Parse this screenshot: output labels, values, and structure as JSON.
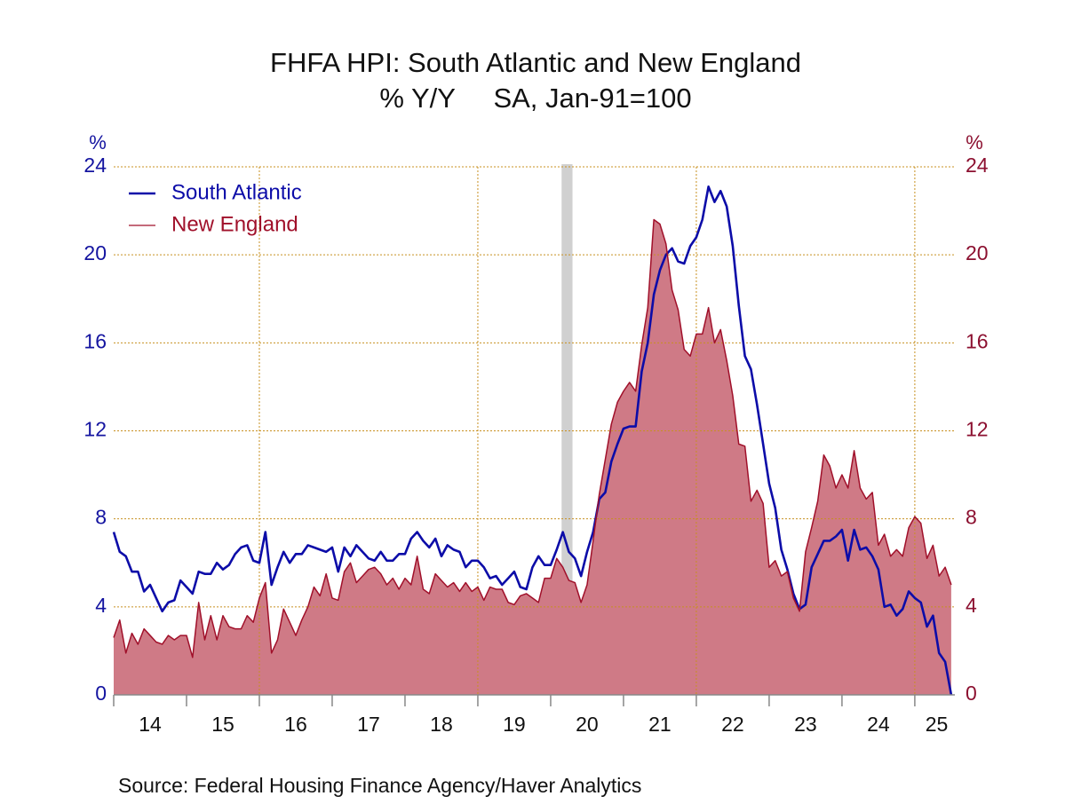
{
  "chart_data": {
    "type": "line",
    "title": "FHFA HPI: South Atlantic and New England",
    "subtitle": "% Y/Y     SA, Jan-91=100",
    "y_unit": "%",
    "y2_unit": "%",
    "source": "Source:  Federal Housing Finance Agency/Haver Analytics",
    "x": [
      2014,
      2014.083,
      2014.167,
      2014.25,
      2014.333,
      2014.417,
      2014.5,
      2014.583,
      2014.667,
      2014.75,
      2014.833,
      2014.917,
      2015,
      2015.083,
      2015.167,
      2015.25,
      2015.333,
      2015.417,
      2015.5,
      2015.583,
      2015.667,
      2015.75,
      2015.833,
      2015.917,
      2016,
      2016.083,
      2016.167,
      2016.25,
      2016.333,
      2016.417,
      2016.5,
      2016.583,
      2016.667,
      2016.75,
      2016.833,
      2016.917,
      2017,
      2017.083,
      2017.167,
      2017.25,
      2017.333,
      2017.417,
      2017.5,
      2017.583,
      2017.667,
      2017.75,
      2017.833,
      2017.917,
      2018,
      2018.083,
      2018.167,
      2018.25,
      2018.333,
      2018.417,
      2018.5,
      2018.583,
      2018.667,
      2018.75,
      2018.833,
      2018.917,
      2019,
      2019.083,
      2019.167,
      2019.25,
      2019.333,
      2019.417,
      2019.5,
      2019.583,
      2019.667,
      2019.75,
      2019.833,
      2019.917,
      2020,
      2020.083,
      2020.167,
      2020.25,
      2020.333,
      2020.417,
      2020.5,
      2020.583,
      2020.667,
      2020.75,
      2020.833,
      2020.917,
      2021,
      2021.083,
      2021.167,
      2021.25,
      2021.333,
      2021.417,
      2021.5,
      2021.583,
      2021.667,
      2021.75,
      2021.833,
      2021.917,
      2022,
      2022.083,
      2022.167,
      2022.25,
      2022.333,
      2022.417,
      2022.5,
      2022.583,
      2022.667,
      2022.75,
      2022.833,
      2022.917,
      2023,
      2023.083,
      2023.167,
      2023.25,
      2023.333,
      2023.417,
      2023.5,
      2023.583,
      2023.667,
      2023.75,
      2023.833,
      2023.917,
      2024,
      2024.083,
      2024.167,
      2024.25,
      2024.333,
      2024.417,
      2024.5,
      2024.583,
      2024.667,
      2024.75,
      2024.833,
      2024.917,
      2025,
      2025.083,
      2025.167,
      2025.25,
      2025.333,
      2025.417,
      2025.5
    ],
    "series": [
      {
        "name": "South Atlantic",
        "color": "#0c0ca8",
        "axis": "y",
        "fill": false,
        "values": [
          7.4,
          6.5,
          6.3,
          5.6,
          5.6,
          4.7,
          5.0,
          4.4,
          3.8,
          4.2,
          4.3,
          5.2,
          4.9,
          4.6,
          5.6,
          5.5,
          5.5,
          6.0,
          5.7,
          5.9,
          6.4,
          6.7,
          6.8,
          6.1,
          6.0,
          7.4,
          5.0,
          5.8,
          6.5,
          6.0,
          6.4,
          6.4,
          6.8,
          6.7,
          6.6,
          6.5,
          6.7,
          5.6,
          6.7,
          6.3,
          6.8,
          6.5,
          6.2,
          6.1,
          6.5,
          6.1,
          6.1,
          6.4,
          6.4,
          7.1,
          7.4,
          7.0,
          6.7,
          7.1,
          6.3,
          6.8,
          6.6,
          6.5,
          5.8,
          6.1,
          6.1,
          5.8,
          5.3,
          5.4,
          5.0,
          5.3,
          5.6,
          4.9,
          4.8,
          5.8,
          6.3,
          5.9,
          5.9,
          6.6,
          7.4,
          6.5,
          6.2,
          5.4,
          6.5,
          7.4,
          8.9,
          9.2,
          10.6,
          11.4,
          12.1,
          12.2,
          12.2,
          14.7,
          16.0,
          18.2,
          19.3,
          20.0,
          20.3,
          19.7,
          19.6,
          20.4,
          20.8,
          21.6,
          23.1,
          22.4,
          22.9,
          22.2,
          20.4,
          17.7,
          15.4,
          14.8,
          13.2,
          11.4,
          9.6,
          8.5,
          6.6,
          5.7,
          4.6,
          3.9,
          4.1,
          5.8,
          6.4,
          7.0,
          7.0,
          7.2,
          7.5,
          6.1,
          7.5,
          6.6,
          6.7,
          6.3,
          5.7,
          4.0,
          4.1,
          3.6,
          3.9,
          4.7,
          4.4,
          4.2,
          3.1,
          3.6,
          1.9,
          1.5,
          0.0
        ]
      },
      {
        "name": "New England",
        "color": "#a0102a",
        "fill_color": "#cf7a86",
        "axis": "y2",
        "fill": true,
        "values": [
          2.6,
          3.4,
          1.9,
          2.8,
          2.3,
          3.0,
          2.7,
          2.4,
          2.3,
          2.7,
          2.5,
          2.7,
          2.7,
          1.7,
          4.2,
          2.5,
          3.6,
          2.5,
          3.6,
          3.1,
          3.0,
          3.0,
          3.6,
          3.3,
          4.4,
          5.1,
          1.9,
          2.5,
          3.9,
          3.3,
          2.7,
          3.4,
          4.0,
          4.9,
          4.5,
          5.5,
          4.4,
          4.3,
          5.6,
          6.0,
          5.1,
          5.4,
          5.7,
          5.8,
          5.5,
          5.0,
          5.3,
          4.8,
          5.3,
          5.0,
          6.3,
          4.8,
          4.6,
          5.5,
          5.2,
          4.9,
          5.1,
          4.7,
          5.1,
          4.7,
          4.9,
          4.3,
          4.9,
          4.8,
          4.8,
          4.2,
          4.1,
          4.5,
          4.6,
          4.4,
          4.2,
          5.3,
          5.3,
          6.2,
          5.8,
          5.2,
          5.1,
          4.2,
          5.0,
          7.0,
          9.1,
          10.7,
          12.3,
          13.3,
          13.8,
          14.2,
          13.8,
          15.9,
          17.6,
          21.6,
          21.4,
          20.5,
          18.4,
          17.5,
          15.7,
          15.4,
          16.4,
          16.4,
          17.6,
          16.0,
          16.6,
          15.2,
          13.6,
          11.4,
          11.3,
          8.8,
          9.3,
          8.7,
          5.8,
          6.1,
          5.4,
          5.6,
          4.4,
          3.8,
          6.5,
          7.6,
          8.8,
          10.9,
          10.4,
          9.4,
          10.0,
          9.4,
          11.1,
          9.4,
          8.9,
          9.2,
          6.8,
          7.3,
          6.3,
          6.6,
          6.3,
          7.6,
          8.1,
          7.8,
          6.2,
          6.8,
          5.4,
          5.8,
          5.0
        ]
      }
    ],
    "recession": [
      2020.15,
      2020.3
    ],
    "xlim": [
      2014,
      2025.55
    ],
    "xticks": [
      {
        "value": 2014.5,
        "label": "14"
      },
      {
        "value": 2015.5,
        "label": "15"
      },
      {
        "value": 2016.5,
        "label": "16"
      },
      {
        "value": 2017.5,
        "label": "17"
      },
      {
        "value": 2018.5,
        "label": "18"
      },
      {
        "value": 2019.5,
        "label": "19"
      },
      {
        "value": 2020.5,
        "label": "20"
      },
      {
        "value": 2021.5,
        "label": "21"
      },
      {
        "value": 2022.5,
        "label": "22"
      },
      {
        "value": 2023.5,
        "label": "23"
      },
      {
        "value": 2024.5,
        "label": "24"
      },
      {
        "value": 2025.3,
        "label": "25"
      }
    ],
    "xminorticks": [
      2014,
      2015,
      2016,
      2017,
      2018,
      2019,
      2020,
      2021,
      2022,
      2023,
      2024,
      2025
    ],
    "xgrid": [
      2016,
      2019,
      2022,
      2025
    ],
    "ylim": [
      0,
      24
    ],
    "yticks": [
      0,
      4,
      8,
      12,
      16,
      20,
      24
    ],
    "y2lim": [
      0,
      24
    ],
    "y2ticks": [
      0,
      4,
      8,
      12,
      16,
      20,
      24
    ],
    "y_color": "#1414a0",
    "y2_color": "#8c1030",
    "grid": true,
    "grid_color": "#c89020",
    "legend": "upper left"
  }
}
